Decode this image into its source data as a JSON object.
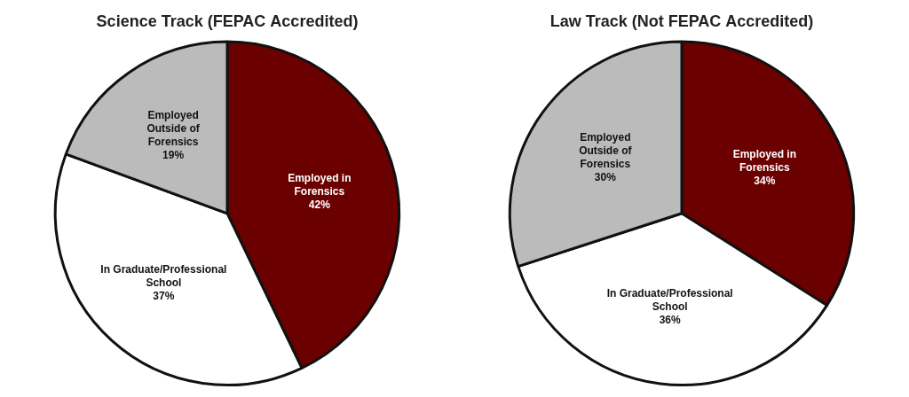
{
  "chart_data": [
    {
      "type": "pie",
      "title": "Science Track (FEPAC Accredited)",
      "categories": [
        "Employed in\nForensics",
        "In Graduate/Professional\nSchool",
        "Employed\nOutside of\nForensics"
      ],
      "values": [
        42,
        37,
        19
      ],
      "value_labels": [
        "42%",
        "37%",
        "19%"
      ],
      "colors": [
        "#6B0000",
        "#FFFFFF",
        "#BBBBBB"
      ],
      "data_labels": true
    },
    {
      "type": "pie",
      "title": "Law Track (Not FEPAC Accredited)",
      "categories": [
        "Employed in\nForensics",
        "In Graduate/Professional\nSchool",
        "Employed\nOutside of\nForensics"
      ],
      "values": [
        34,
        36,
        30
      ],
      "value_labels": [
        "34%",
        "36%",
        "30%"
      ],
      "colors": [
        "#6B0000",
        "#FFFFFF",
        "#BBBBBB"
      ],
      "data_labels": true
    }
  ]
}
